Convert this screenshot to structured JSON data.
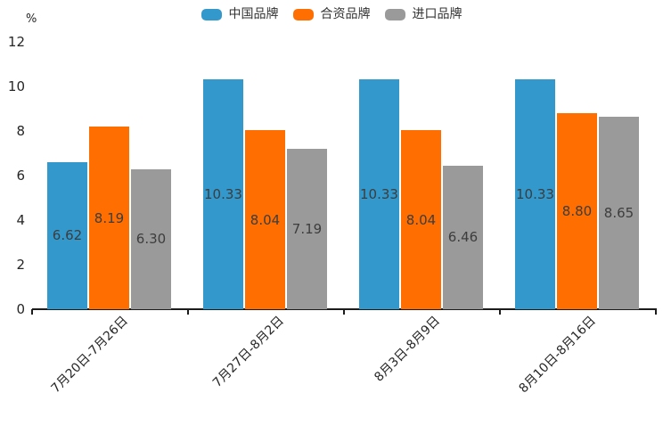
{
  "chart_data": {
    "type": "bar",
    "title": "",
    "unit_label": "%",
    "categories": [
      "7月20日-7月26日",
      "7月27日-8月2日",
      "8月3日-8月9日",
      "8月10日-8月16日"
    ],
    "series": [
      {
        "name": "中国品牌",
        "color": "#3398cc",
        "values": [
          6.62,
          10.33,
          10.33,
          10.33
        ]
      },
      {
        "name": "合资品牌",
        "color": "#ff6e00",
        "values": [
          8.19,
          8.04,
          8.04,
          8.8
        ]
      },
      {
        "name": "进口品牌",
        "color": "#9a9a9a",
        "values": [
          6.3,
          7.19,
          6.46,
          8.65
        ]
      }
    ],
    "y_ticks": [
      0,
      2,
      4,
      6,
      8,
      10,
      12
    ],
    "ylim": [
      0,
      12
    ],
    "grid": false,
    "legend_position": "top-center",
    "value_labels": "inside-center",
    "value_decimals": 2
  }
}
